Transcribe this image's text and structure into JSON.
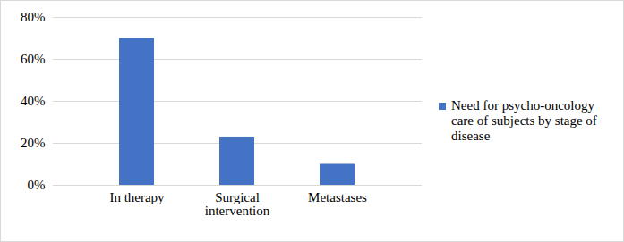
{
  "chart_data": {
    "type": "bar",
    "categories": [
      "In therapy",
      "Surgical intervention",
      "Metastases"
    ],
    "series": [
      {
        "name": "Need for psycho-oncology care of subjects  by stage of disease",
        "color": "#4472c4",
        "values": [
          70,
          23,
          10
        ]
      }
    ],
    "ylim": [
      0,
      80
    ],
    "yticks": [
      {
        "value": 0,
        "label": "0%"
      },
      {
        "value": 20,
        "label": "20%"
      },
      {
        "value": 40,
        "label": "40%"
      },
      {
        "value": 60,
        "label": "60%"
      },
      {
        "value": 80,
        "label": "80%"
      }
    ],
    "grid": true,
    "legend": "right"
  }
}
